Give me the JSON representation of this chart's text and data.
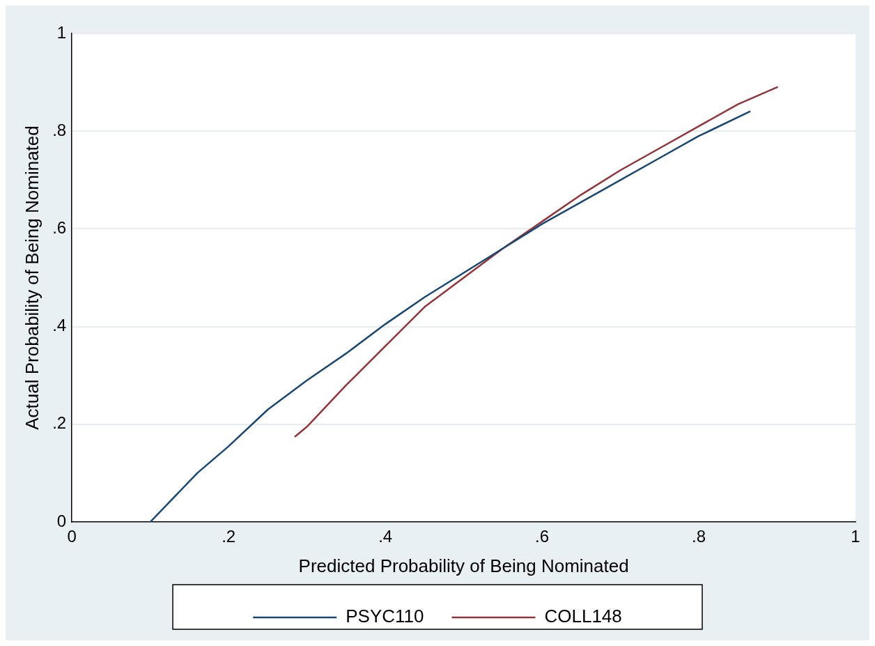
{
  "chart_data": {
    "type": "line",
    "xlabel": "Predicted Probability of Being Nominated",
    "ylabel": "Actual Probability of Being Nominated",
    "xlim": [
      0,
      1
    ],
    "ylim": [
      0,
      1
    ],
    "xticks": [
      {
        "value": 0,
        "label": "0"
      },
      {
        "value": 0.2,
        "label": ".2"
      },
      {
        "value": 0.4,
        "label": ".4"
      },
      {
        "value": 0.6,
        "label": ".6"
      },
      {
        "value": 0.8,
        "label": ".8"
      },
      {
        "value": 1,
        "label": "1"
      }
    ],
    "yticks": [
      {
        "value": 0,
        "label": "0"
      },
      {
        "value": 0.2,
        "label": ".2"
      },
      {
        "value": 0.4,
        "label": ".4"
      },
      {
        "value": 0.6,
        "label": ".6"
      },
      {
        "value": 0.8,
        "label": ".8"
      },
      {
        "value": 1,
        "label": "1"
      }
    ],
    "grid": "y",
    "legend": "bottom",
    "marker": "none",
    "line_style": "solid",
    "series": [
      {
        "name": "PSYC110",
        "color": "#1a476f",
        "x": [
          0.1,
          0.16,
          0.2,
          0.25,
          0.3,
          0.35,
          0.4,
          0.45,
          0.5,
          0.55,
          0.6,
          0.65,
          0.7,
          0.75,
          0.8,
          0.865
        ],
        "values": [
          0,
          0.1,
          0.155,
          0.23,
          0.29,
          0.345,
          0.405,
          0.46,
          0.51,
          0.56,
          0.61,
          0.655,
          0.7,
          0.745,
          0.79,
          0.84
        ]
      },
      {
        "name": "COLL148",
        "color": "#90353b",
        "x": [
          0.285,
          0.3,
          0.35,
          0.4,
          0.45,
          0.5,
          0.55,
          0.6,
          0.65,
          0.7,
          0.75,
          0.8,
          0.85,
          0.9
        ],
        "values": [
          0.175,
          0.195,
          0.28,
          0.36,
          0.44,
          0.5,
          0.56,
          0.615,
          0.67,
          0.72,
          0.765,
          0.81,
          0.855,
          0.89
        ]
      }
    ]
  }
}
